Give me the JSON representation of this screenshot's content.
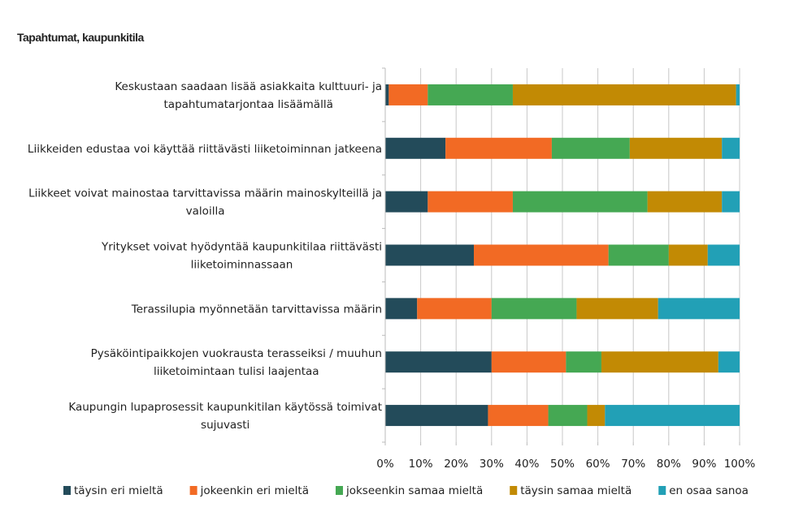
{
  "chart_data": {
    "type": "bar",
    "orientation": "horizontal",
    "stacked": "percent",
    "title": "Tapahtumat, kaupunkitila",
    "xlabel": "",
    "ylabel": "",
    "xlim": [
      0,
      100
    ],
    "x_ticks": [
      "0%",
      "10%",
      "20%",
      "30%",
      "40%",
      "50%",
      "60%",
      "70%",
      "80%",
      "90%",
      "100%"
    ],
    "grid": "vertical",
    "legend_position": "bottom",
    "categories": [
      [
        "Keskustaan saadaan lisää asiakkaita kulttuuri- ja",
        "tapahtumatarjontaa lisäämällä"
      ],
      [
        "Liikkeiden edustaa voi käyttää riittävästi liiketoiminnan jatkeena"
      ],
      [
        "Liikkeet voivat mainostaa tarvittavissa määrin mainoskylteillä ja",
        "valoilla"
      ],
      [
        "Yritykset voivat hyödyntää kaupunkitilaa riittävästi",
        "liiketoiminnassaan"
      ],
      [
        "Terassilupia myönnetään tarvittavissa määrin"
      ],
      [
        "Pysäköintipaikkojen vuokrausta terasseiksi / muuhun",
        "liiketoimintaan tulisi laajentaa"
      ],
      [
        "Kaupungin lupaprosessit kaupunkitilan käytössä toimivat",
        "sujuvasti"
      ]
    ],
    "series": [
      {
        "name": "täysin eri mieltä",
        "color": "#234b5a",
        "values": [
          1,
          17,
          12,
          25,
          9,
          30,
          29
        ]
      },
      {
        "name": "jokeenkin eri mieltä",
        "color": "#f26a24",
        "values": [
          11,
          30,
          24,
          38,
          21,
          21,
          17
        ]
      },
      {
        "name": "jokseenkin samaa mieltä",
        "color": "#45a853",
        "values": [
          24,
          22,
          38,
          17,
          24,
          10,
          11
        ]
      },
      {
        "name": "täysin samaa mieltä",
        "color": "#c28a04",
        "values": [
          63,
          26,
          21,
          11,
          23,
          33,
          5
        ]
      },
      {
        "name": "en osaa sanoa",
        "color": "#22a0b6",
        "values": [
          1,
          5,
          5,
          9,
          23,
          6,
          38
        ]
      }
    ]
  }
}
